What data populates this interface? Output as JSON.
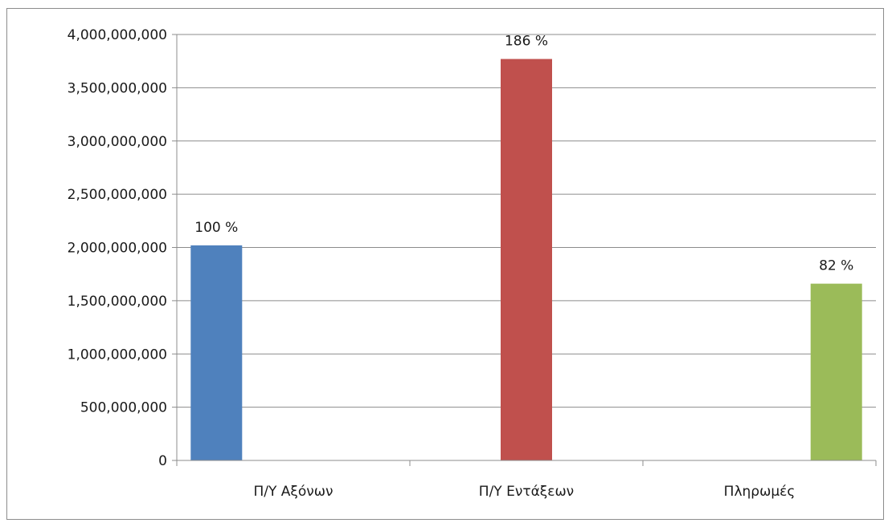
{
  "chart_data": {
    "type": "bar",
    "categories": [
      "Π/Υ Αξόνων",
      "Π/Υ Εντάξεων",
      "Πληρωμές"
    ],
    "values": [
      2020000000,
      3770000000,
      1660000000
    ],
    "data_labels": [
      "100 %",
      "186 %",
      "82 %"
    ],
    "colors": [
      "#4f81bd",
      "#c0504d",
      "#9bbb59"
    ],
    "ylim": [
      0,
      4000000000
    ],
    "yticks": [
      0,
      500000000,
      1000000000,
      1500000000,
      2000000000,
      2500000000,
      3000000000,
      3500000000,
      4000000000
    ],
    "ytick_labels": [
      "0",
      "500,000,000",
      "1,000,000,000",
      "1,500,000,000",
      "2,000,000,000",
      "2,500,000,000",
      "3,000,000,000",
      "3,500,000,000",
      "4,000,000,000"
    ],
    "grid": true,
    "legend": false
  }
}
